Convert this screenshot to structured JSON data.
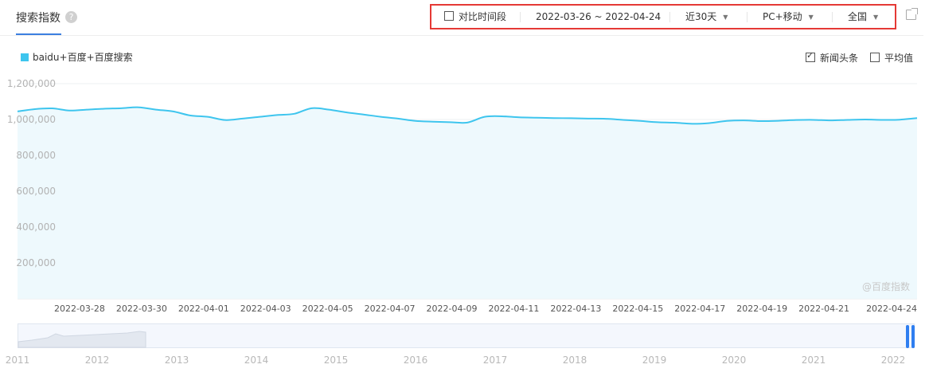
{
  "header": {
    "tab_label": "搜索指数",
    "help_icon": "question-icon",
    "toolbar": {
      "compare_label": "对比时间段",
      "date_range": "2022-03-26 ~ 2022-04-24",
      "period": "近30天",
      "device": "PC+移动",
      "region": "全国"
    },
    "share_icon": "external-link-icon"
  },
  "options": {
    "news_label": "新闻头条",
    "news_checked": true,
    "average_label": "平均值",
    "average_checked": false
  },
  "watermark": "@百度指数",
  "colors": {
    "accent": "#3c7fe0",
    "series": "#3ec5ee",
    "highlight_box": "#e53935"
  },
  "chart_data": {
    "type": "area",
    "series": [
      {
        "name": "baidu+百度+百度搜索",
        "values": [
          1045000,
          1058000,
          1062000,
          1050000,
          1055000,
          1060000,
          1063000,
          1068000,
          1055000,
          1045000,
          1022000,
          1015000,
          997000,
          1005000,
          1015000,
          1025000,
          1032000,
          1063000,
          1055000,
          1040000,
          1028000,
          1015000,
          1005000,
          992000,
          988000,
          985000,
          983000,
          1015000,
          1018000,
          1012000,
          1010000,
          1008000,
          1007000,
          1005000,
          1004000,
          998000,
          992000,
          985000,
          982000,
          976000,
          980000,
          992000,
          995000,
          991000,
          993000,
          997000,
          998000,
          995000,
          998000,
          1000000,
          998000,
          999000,
          1008000
        ]
      }
    ],
    "x_start": "2022-03-26",
    "x_end": "2022-04-24",
    "x_tick_labels": [
      "2022-03-28",
      "2022-03-30",
      "2022-04-01",
      "2022-04-03",
      "2022-04-05",
      "2022-04-07",
      "2022-04-09",
      "2022-04-11",
      "2022-04-13",
      "2022-04-15",
      "2022-04-17",
      "2022-04-19",
      "2022-04-21",
      "2022-04-24"
    ],
    "y_ticks": [
      200000,
      400000,
      600000,
      800000,
      1000000,
      1200000
    ],
    "y_tick_labels": [
      "200,000",
      "400,000",
      "600,000",
      "800,000",
      "1,000,000",
      "1,200,000"
    ],
    "ylim": [
      0,
      1200000
    ],
    "grid": true,
    "legend": "top-left",
    "overview_years": [
      "2011",
      "2012",
      "2013",
      "2014",
      "2015",
      "2016",
      "2017",
      "2018",
      "2019",
      "2020",
      "2021",
      "2022"
    ]
  }
}
